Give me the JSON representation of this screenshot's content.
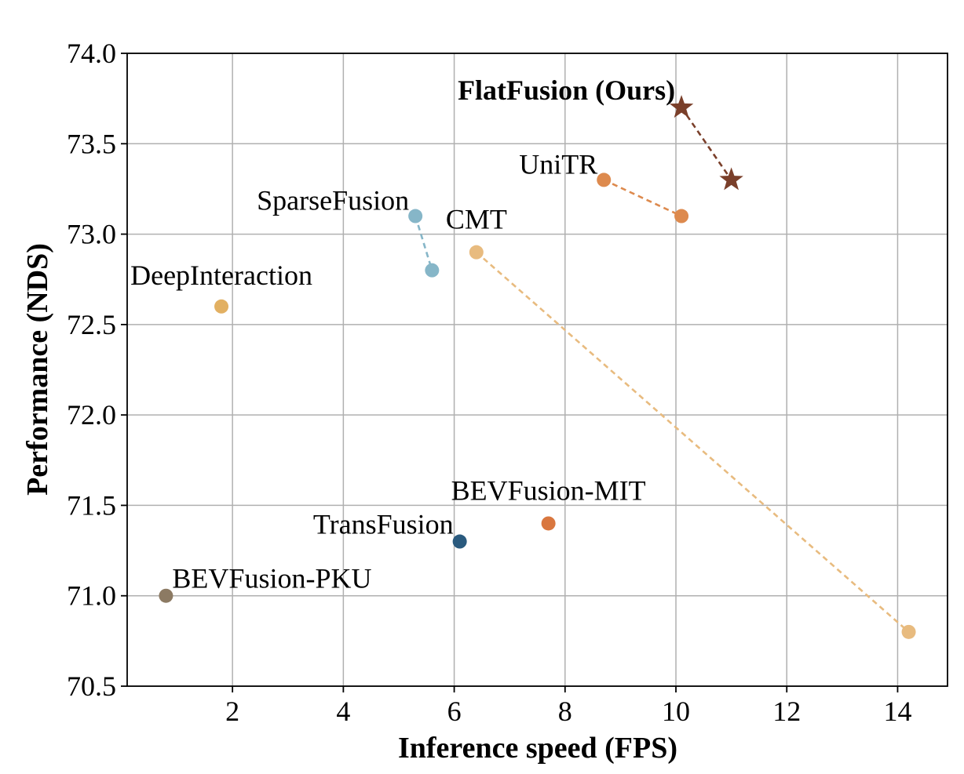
{
  "chart_data": {
    "type": "scatter",
    "xlabel": "Inference speed (FPS)",
    "ylabel": "Performance (NDS)",
    "xlim": [
      0.1,
      14.9
    ],
    "ylim": [
      70.5,
      74.0
    ],
    "xticks": [
      "2",
      "4",
      "6",
      "8",
      "10",
      "12",
      "14"
    ],
    "yticks": [
      "70.5",
      "71.0",
      "71.5",
      "72.0",
      "72.5",
      "73.0",
      "73.5",
      "74.0"
    ],
    "grid": true,
    "series": [
      {
        "name": "FlatFusion (Ours)",
        "marker": "star",
        "color": "#7a3f2a",
        "label_color": "#7d4a34",
        "highlight": true,
        "connected": true,
        "points": [
          {
            "x": 10.1,
            "y": 73.7
          },
          {
            "x": 11.0,
            "y": 73.3
          }
        ]
      },
      {
        "name": "UniTR",
        "marker": "circle",
        "color": "#dd8a4e",
        "connected": true,
        "points": [
          {
            "x": 8.7,
            "y": 73.3
          },
          {
            "x": 10.1,
            "y": 73.1
          }
        ]
      },
      {
        "name": "SparseFusion",
        "marker": "circle",
        "color": "#86b6c8",
        "connected": true,
        "points": [
          {
            "x": 5.3,
            "y": 73.1
          },
          {
            "x": 5.6,
            "y": 72.8
          }
        ]
      },
      {
        "name": "CMT",
        "marker": "circle",
        "color": "#e8bb7f",
        "connected": true,
        "points": [
          {
            "x": 6.4,
            "y": 72.9
          },
          {
            "x": 14.2,
            "y": 70.8
          }
        ]
      },
      {
        "name": "DeepInteraction",
        "marker": "circle",
        "color": "#e2b062",
        "connected": false,
        "points": [
          {
            "x": 1.8,
            "y": 72.6
          }
        ]
      },
      {
        "name": "BEVFusion-MIT",
        "marker": "circle",
        "color": "#d9773f",
        "connected": false,
        "points": [
          {
            "x": 7.7,
            "y": 71.4
          }
        ]
      },
      {
        "name": "TransFusion",
        "marker": "circle",
        "color": "#2a5a7e",
        "connected": false,
        "points": [
          {
            "x": 6.1,
            "y": 71.3
          }
        ]
      },
      {
        "name": "BEVFusion-PKU",
        "marker": "circle",
        "color": "#8c7a63",
        "connected": false,
        "points": [
          {
            "x": 0.8,
            "y": 71.0
          }
        ]
      }
    ]
  }
}
